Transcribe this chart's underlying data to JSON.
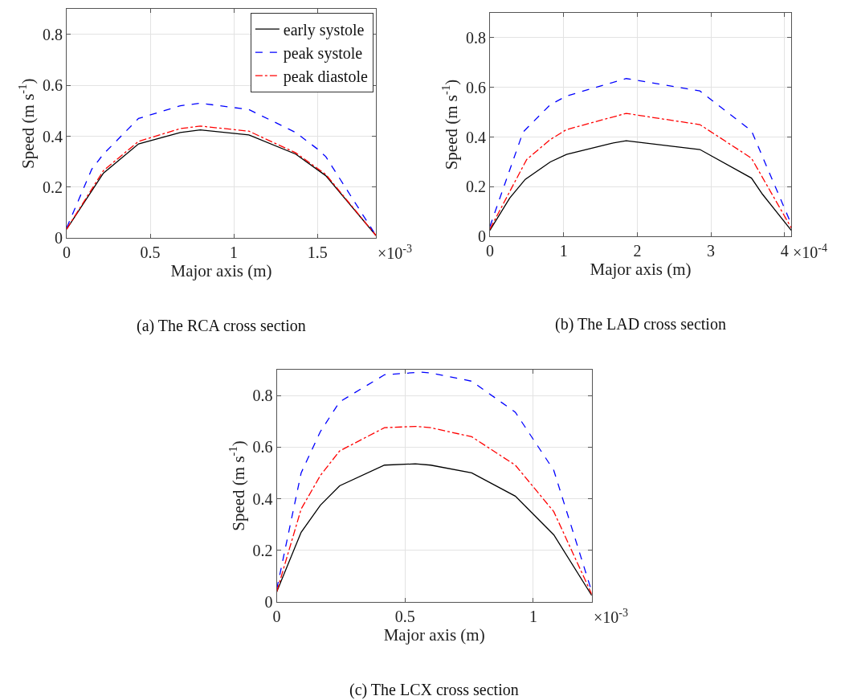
{
  "chart_data": [
    {
      "type": "line",
      "title": "(a) The RCA cross section",
      "xlabel": "Major axis (m)",
      "ylabel": "Speed (m s$^{-1}$)",
      "annotations": [
        "×10$^{-3}$"
      ],
      "xlim": [
        0,
        1.85
      ],
      "ylim": [
        0,
        0.9
      ],
      "xticks": [
        0,
        0.5,
        1,
        1.5
      ],
      "yticks": [
        0,
        0.2,
        0.4,
        0.6,
        0.8
      ],
      "grid": true,
      "legend": "top right",
      "series": [
        {
          "name": "early systole",
          "color": "#000000",
          "line_style": "solid",
          "x": [
            0,
            0.22,
            0.43,
            0.68,
            0.8,
            1.09,
            1.37,
            1.55,
            1.85
          ],
          "values": [
            0.035,
            0.255,
            0.37,
            0.415,
            0.425,
            0.405,
            0.33,
            0.245,
            0.01
          ]
        },
        {
          "name": "peak systole",
          "color": "#0000ff",
          "line_style": "dashed",
          "x": [
            0,
            0.15,
            0.22,
            0.43,
            0.68,
            0.8,
            1.09,
            1.37,
            1.5,
            1.55,
            1.85
          ],
          "values": [
            0.04,
            0.27,
            0.33,
            0.47,
            0.52,
            0.53,
            0.505,
            0.415,
            0.35,
            0.32,
            0.01
          ]
        },
        {
          "name": "peak diastole",
          "color": "#ff0000",
          "line_style": "dashdot",
          "x": [
            0,
            0.22,
            0.43,
            0.68,
            0.8,
            1.09,
            1.37,
            1.55,
            1.85
          ],
          "values": [
            0.035,
            0.265,
            0.38,
            0.43,
            0.44,
            0.42,
            0.335,
            0.25,
            0.01
          ]
        }
      ]
    },
    {
      "type": "line",
      "title": "(b) The LAD cross section",
      "xlabel": "Major axis (m)",
      "ylabel": "Speed (m s$^{-1}$)",
      "annotations": [
        "×10$^{-4}$"
      ],
      "xlim": [
        0,
        4.09
      ],
      "ylim": [
        0,
        0.9
      ],
      "xticks": [
        0,
        1,
        2,
        3,
        4
      ],
      "yticks": [
        0,
        0.2,
        0.4,
        0.6,
        0.8
      ],
      "grid": true,
      "series": [
        {
          "color": "#000000",
          "line_style": "solid",
          "x": [
            0,
            0.27,
            0.48,
            0.82,
            1.04,
            1.65,
            1.85,
            2.85,
            3.55,
            3.7,
            4.09
          ],
          "values": [
            0.025,
            0.155,
            0.23,
            0.3,
            0.33,
            0.375,
            0.385,
            0.35,
            0.235,
            0.17,
            0.025
          ]
        },
        {
          "color": "#0000ff",
          "line_style": "dashed",
          "x": [
            0,
            0.45,
            0.82,
            1.04,
            1.85,
            2.85,
            3.55,
            4.09
          ],
          "values": [
            0.04,
            0.42,
            0.53,
            0.565,
            0.635,
            0.585,
            0.425,
            0.05
          ]
        },
        {
          "color": "#ff0000",
          "line_style": "dashdot",
          "x": [
            0,
            0.5,
            0.82,
            1.04,
            1.85,
            2.85,
            3.55,
            4.09
          ],
          "values": [
            0.03,
            0.31,
            0.39,
            0.43,
            0.495,
            0.45,
            0.315,
            0.035
          ]
        }
      ]
    },
    {
      "type": "line",
      "title": "(c) The LCX cross section",
      "xlabel": "Major axis (m)",
      "ylabel": "Speed (m s$^{-1}$)",
      "annotations": [
        "×10$^{-3}$"
      ],
      "xlim": [
        0,
        1.228
      ],
      "ylim": [
        0,
        0.9
      ],
      "xticks": [
        0,
        0.5,
        1
      ],
      "yticks": [
        0,
        0.2,
        0.4,
        0.6,
        0.8
      ],
      "grid": true,
      "series": [
        {
          "color": "#000000",
          "line_style": "solid",
          "x": [
            0,
            0.095,
            0.17,
            0.245,
            0.42,
            0.54,
            0.6,
            0.76,
            0.93,
            1.08,
            1.228
          ],
          "values": [
            0.04,
            0.27,
            0.375,
            0.45,
            0.53,
            0.535,
            0.53,
            0.5,
            0.41,
            0.26,
            0.025
          ]
        },
        {
          "color": "#0000ff",
          "line_style": "dashed",
          "x": [
            0,
            0.095,
            0.17,
            0.245,
            0.42,
            0.56,
            0.6,
            0.76,
            0.93,
            1.08,
            1.228
          ],
          "values": [
            0.05,
            0.5,
            0.66,
            0.775,
            0.88,
            0.89,
            0.887,
            0.855,
            0.735,
            0.51,
            0.04
          ]
        },
        {
          "color": "#ff0000",
          "line_style": "dashdot",
          "x": [
            0,
            0.095,
            0.17,
            0.245,
            0.42,
            0.54,
            0.6,
            0.76,
            0.93,
            1.08,
            1.228
          ],
          "values": [
            0.04,
            0.36,
            0.49,
            0.585,
            0.675,
            0.68,
            0.675,
            0.64,
            0.53,
            0.35,
            0.03
          ]
        }
      ]
    }
  ]
}
